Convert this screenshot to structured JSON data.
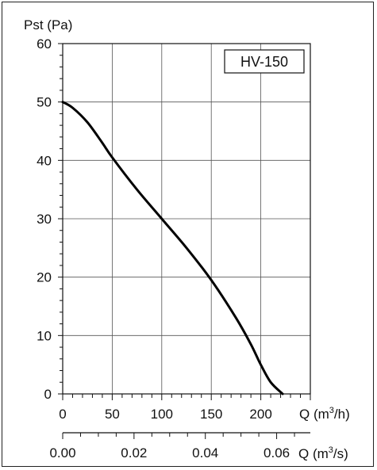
{
  "chart_data": {
    "type": "line",
    "ylabel": "Pst (Pa)",
    "xlabel": "Q (m",
    "xlabel_sup": "3",
    "xlabel_unit_tail": "/h)",
    "x2label": "Q (m",
    "x2label_sup": "3",
    "x2label_unit_tail": "/s)",
    "legend": "HV-150",
    "legend_position": "top-right",
    "grid": true,
    "xlim": [
      0,
      250
    ],
    "ylim": [
      0,
      60
    ],
    "x_ticks": [
      0,
      50,
      100,
      150,
      200
    ],
    "x_tick_labels": [
      "0",
      "50",
      "100",
      "150",
      "200"
    ],
    "y_ticks": [
      0,
      10,
      20,
      30,
      40,
      50,
      60
    ],
    "y_tick_labels": [
      "0",
      "10",
      "20",
      "30",
      "40",
      "50",
      "60"
    ],
    "x2_ticks": [
      0.0,
      0.02,
      0.04,
      0.06
    ],
    "x2_tick_labels": [
      "0.00",
      "0.02",
      "0.04",
      "0.06"
    ],
    "series": [
      {
        "name": "HV-150",
        "x": [
          0,
          10,
          25,
          40,
          50,
          75,
          100,
          125,
          150,
          175,
          190,
          200,
          210,
          222
        ],
        "y": [
          50,
          49,
          46.5,
          43,
          40.5,
          35,
          30,
          25,
          19.5,
          13,
          8.5,
          5,
          2,
          0
        ]
      }
    ]
  }
}
